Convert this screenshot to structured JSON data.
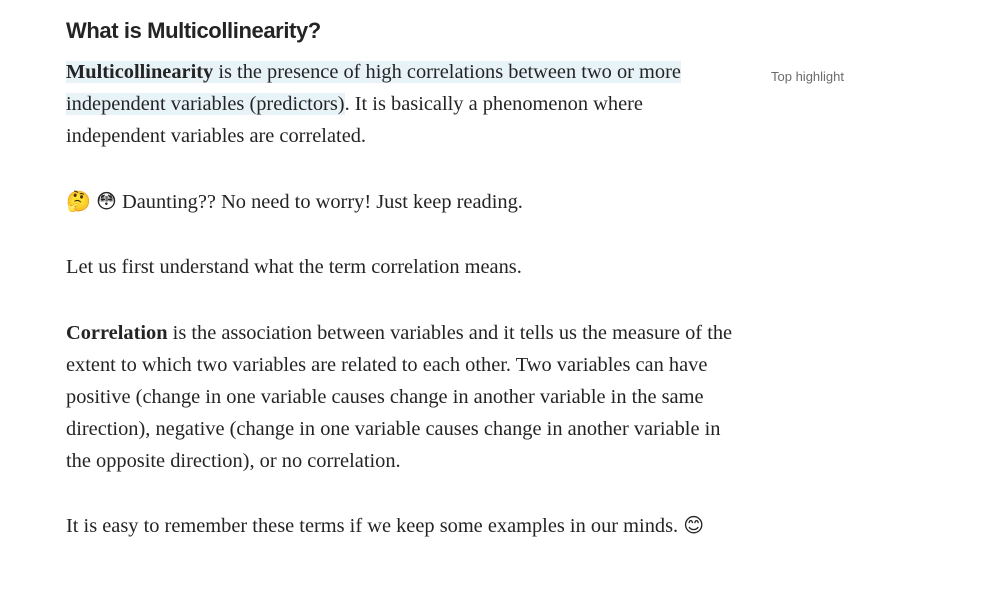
{
  "article": {
    "heading": "What is Multicollinearity?",
    "p1": {
      "term": "Multicollinearity",
      "highlight_rest": " is the presence of high correlations between two or more independent variables (predictors)",
      "rest": ". It is basically a phenomenon where independent variables are correlated."
    },
    "p2": {
      "emoji1": "🤔",
      "emoji2": "😳",
      "text": "Daunting?? No need to worry! Just keep reading."
    },
    "p3": {
      "text": "Let us first understand what the term correlation means."
    },
    "p4": {
      "term": "Correlation",
      "rest": " is the association between variables and it tells us the measure of the extent to which two variables are related to each other. Two variables can have positive (change in one variable causes change in another variable in the same direction), negative (change in one variable causes change in another variable in the opposite direction), or no correlation."
    },
    "p5": {
      "text": "It is easy to remember these terms if we keep some examples in our minds. ",
      "emoji": "😊"
    }
  },
  "sidebar": {
    "top_highlight_label": "Top highlight"
  },
  "colors": {
    "text": "#242424",
    "highlight_bg": "#e8f3f8",
    "muted": "#6b6b6b"
  }
}
